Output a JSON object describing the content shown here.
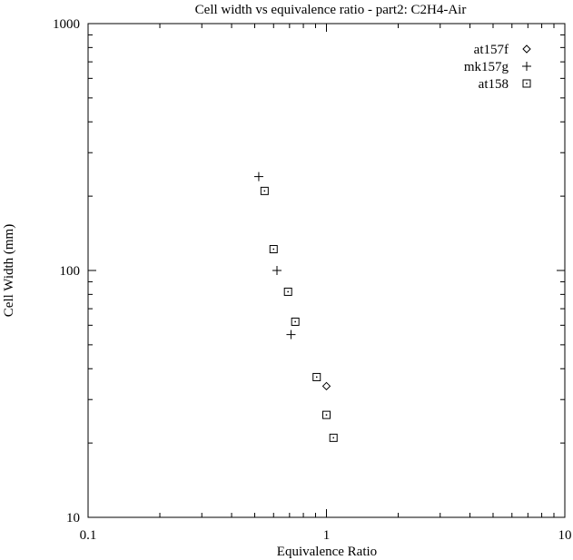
{
  "chart_data": {
    "type": "scatter",
    "title": "Cell width vs equivalence ratio - part2: C2H4-Air",
    "xlabel": "Equivalence Ratio",
    "ylabel": "Cell Width (mm)",
    "xscale": "log",
    "yscale": "log",
    "xlim": [
      0.1,
      10
    ],
    "ylim": [
      10,
      1000
    ],
    "x_ticks": [
      {
        "value": 0.1,
        "label": "0.1"
      },
      {
        "value": 1,
        "label": "1"
      },
      {
        "value": 10,
        "label": "10"
      }
    ],
    "y_ticks": [
      {
        "value": 10,
        "label": "10"
      },
      {
        "value": 100,
        "label": "100"
      },
      {
        "value": 1000,
        "label": "1000"
      }
    ],
    "grid": false,
    "legend_position": "top-right",
    "series": [
      {
        "name": "at157f",
        "marker": "diamond",
        "points": [
          {
            "x": 1.0,
            "y": 34
          }
        ]
      },
      {
        "name": "mk157g",
        "marker": "plus",
        "points": [
          {
            "x": 0.52,
            "y": 240
          },
          {
            "x": 0.62,
            "y": 100
          },
          {
            "x": 0.71,
            "y": 55
          }
        ]
      },
      {
        "name": "at158",
        "marker": "square-dot",
        "points": [
          {
            "x": 0.55,
            "y": 210
          },
          {
            "x": 0.6,
            "y": 122
          },
          {
            "x": 0.69,
            "y": 82
          },
          {
            "x": 0.74,
            "y": 62
          },
          {
            "x": 0.91,
            "y": 37
          },
          {
            "x": 1.0,
            "y": 26
          },
          {
            "x": 1.07,
            "y": 21
          }
        ]
      }
    ]
  }
}
